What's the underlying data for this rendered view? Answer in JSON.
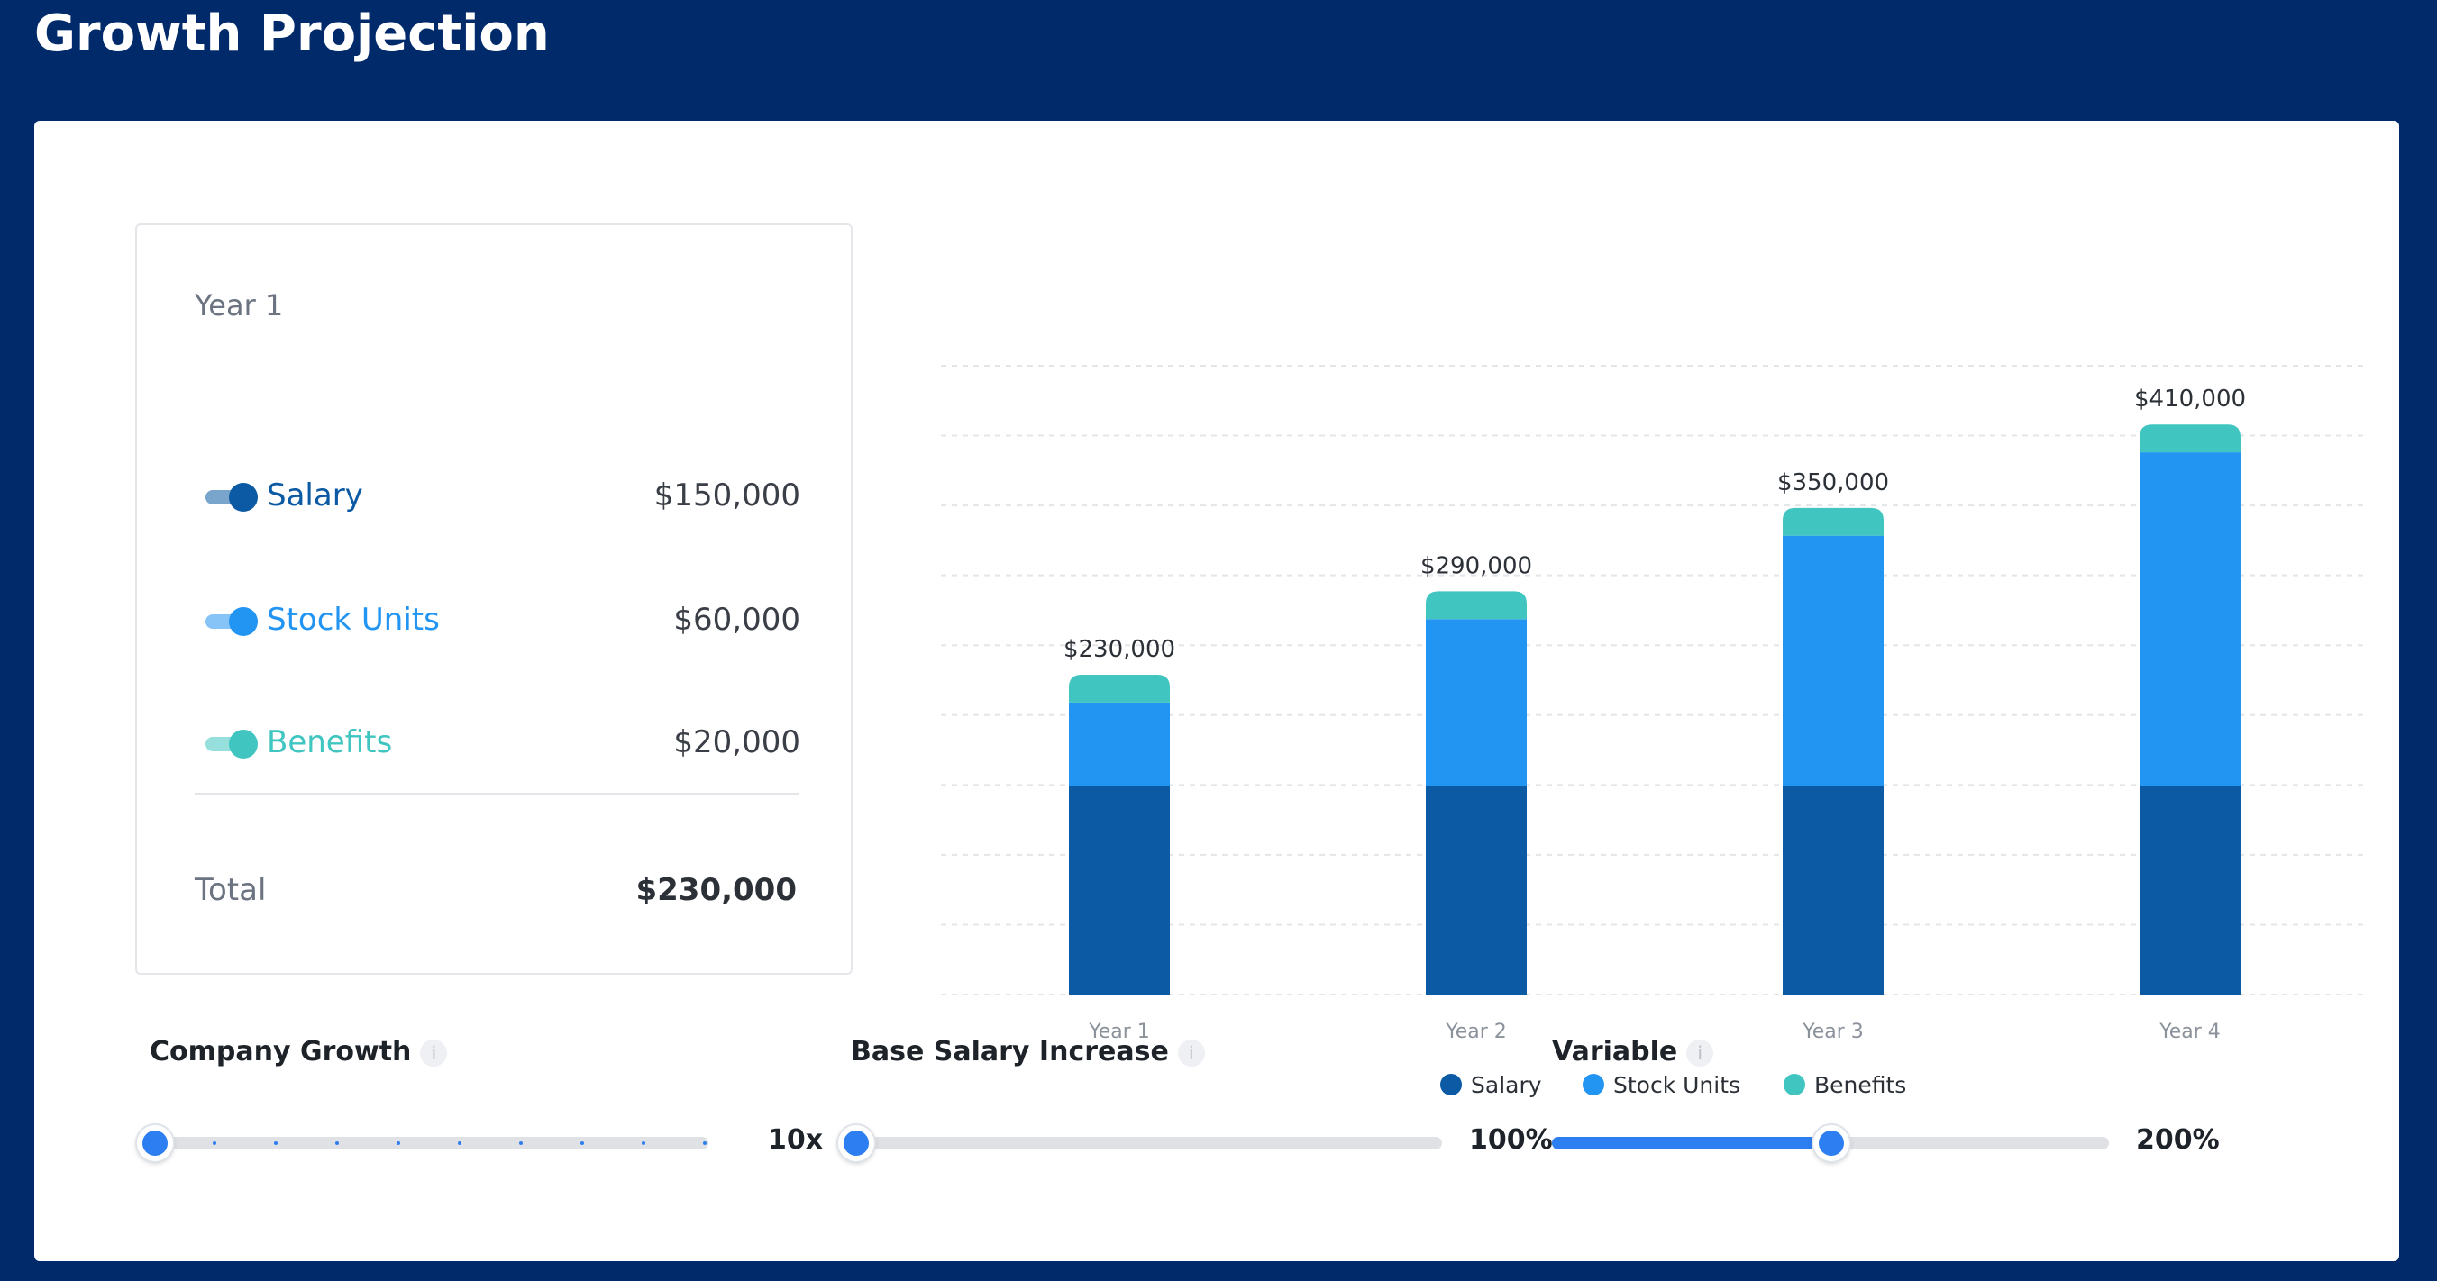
{
  "header": {
    "title": "Growth Projection"
  },
  "summary": {
    "year_label": "Year 1",
    "items": [
      {
        "label": "Salary",
        "value": "$150,000",
        "color": "#0b5aa3"
      },
      {
        "label": "Stock Units",
        "value": "$60,000",
        "color": "#2294f2"
      },
      {
        "label": "Benefits",
        "value": "$20,000",
        "color": "#40c5c0"
      }
    ],
    "total_label": "Total",
    "total_value": "$230,000"
  },
  "chart_data": {
    "type": "bar",
    "stacked": true,
    "categories": [
      "Year 1",
      "Year 2",
      "Year 3",
      "Year 4"
    ],
    "series": [
      {
        "name": "Salary",
        "color": "#0b5aa3",
        "values": [
          150000,
          150000,
          150000,
          150000
        ]
      },
      {
        "name": "Stock Units",
        "color": "#2294f2",
        "values": [
          60000,
          120000,
          180000,
          240000
        ]
      },
      {
        "name": "Benefits",
        "color": "#40c5c0",
        "values": [
          20000,
          20000,
          20000,
          20000
        ]
      }
    ],
    "totals": [
      "$230,000",
      "$290,000",
      "$350,000",
      "$410,000"
    ],
    "ylim": [
      0,
      450000
    ],
    "grid": true,
    "legend": "bottom"
  },
  "sliders": [
    {
      "label": "Company Growth",
      "value": "10x",
      "fraction": 0.0
    },
    {
      "label": "Base Salary Increase",
      "value": "100%",
      "fraction": 0.0
    },
    {
      "label": "Variable",
      "value": "200%",
      "fraction": 0.5
    }
  ],
  "info_icon_glyph": "i"
}
